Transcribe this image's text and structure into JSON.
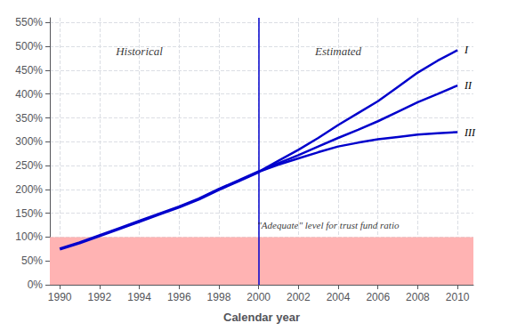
{
  "chart_data": {
    "type": "line",
    "xlabel": "Calendar year",
    "series": [
      {
        "x": [
          1990,
          1991,
          1992,
          1993,
          1994,
          1995,
          1996,
          1997,
          1998,
          1999,
          2000
        ],
        "values": [
          75,
          88,
          103,
          118,
          133,
          148,
          163,
          180,
          200,
          218,
          237
        ],
        "color": "#0000cc"
      },
      {
        "name": "I",
        "x": [
          2000,
          2001,
          2002,
          2003,
          2004,
          2005,
          2006,
          2007,
          2008,
          2009,
          2010
        ],
        "values": [
          237,
          260,
          283,
          308,
          335,
          360,
          385,
          415,
          445,
          470,
          492
        ],
        "color": "#0000cc"
      },
      {
        "name": "II",
        "x": [
          2000,
          2001,
          2002,
          2003,
          2004,
          2005,
          2006,
          2007,
          2008,
          2009,
          2010
        ],
        "values": [
          237,
          255,
          272,
          290,
          308,
          325,
          343,
          363,
          383,
          400,
          418
        ],
        "color": "#0000cc"
      },
      {
        "name": "III",
        "x": [
          2000,
          2001,
          2002,
          2003,
          2004,
          2005,
          2006,
          2007,
          2008,
          2009,
          2010
        ],
        "values": [
          237,
          252,
          265,
          278,
          290,
          298,
          305,
          310,
          315,
          318,
          320
        ],
        "color": "#0000cc"
      }
    ],
    "xlim": [
      1989.5,
      2010.8
    ],
    "xticks": [
      1990,
      1992,
      1994,
      1996,
      1998,
      2000,
      2002,
      2004,
      2006,
      2008,
      2010
    ],
    "ylim": [
      0,
      560
    ],
    "yticks": [
      {
        "value": 0,
        "label": "0%"
      },
      {
        "value": 50,
        "label": "50%"
      },
      {
        "value": 100,
        "label": "100%"
      },
      {
        "value": 150,
        "label": "150%"
      },
      {
        "value": 200,
        "label": "200%"
      },
      {
        "value": 250,
        "label": "250%"
      },
      {
        "value": 300,
        "label": "300%"
      },
      {
        "value": 350,
        "label": "350%"
      },
      {
        "value": 400,
        "label": "400%"
      },
      {
        "value": 450,
        "label": "450%"
      },
      {
        "value": 500,
        "label": "500%"
      },
      {
        "value": 550,
        "label": "550%"
      }
    ],
    "grid": true,
    "bands": [
      {
        "from": 0,
        "to": 100,
        "color": "#ffb3b3"
      }
    ],
    "vlines": [
      {
        "x": 2000,
        "color": "#0000cc"
      }
    ],
    "annotations": [
      {
        "text": "Historical",
        "x": 1994,
        "y": 490
      },
      {
        "text": "Estimated",
        "x": 2004,
        "y": 490
      },
      {
        "text": "\"Adequate\" level for trust fund ratio",
        "x": 2003.5,
        "y": 125
      }
    ]
  }
}
